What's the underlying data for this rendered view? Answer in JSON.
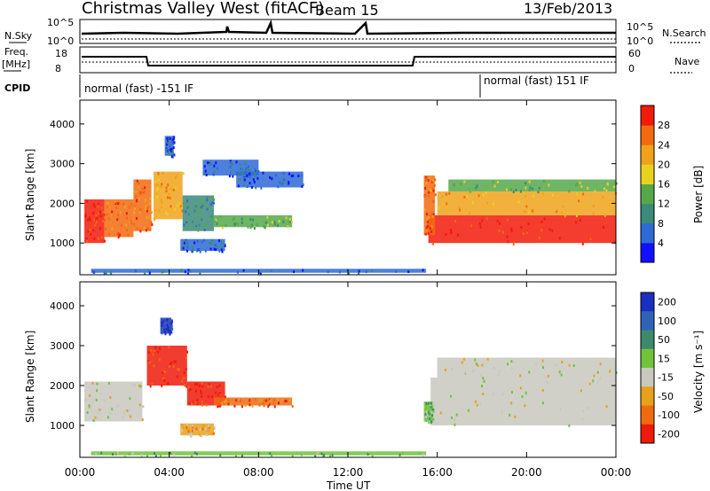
{
  "header": {
    "station": "Christmas Valley West (fitACF)",
    "beam": "Beam 15",
    "date": "13/Feb/2013"
  },
  "status_panel": {
    "nsky_label": "N.Sky",
    "nsky_ticks": [
      "10^5",
      "10^0"
    ],
    "nsearch_ticks": [
      "10^5",
      "10^0"
    ],
    "nsearch_label": "N.Search",
    "freq_label_line1": "Freq.",
    "freq_label_line2": "[MHz]",
    "freq_ticks": [
      "18",
      "8"
    ],
    "nave_ticks": [
      "60",
      "0"
    ],
    "nave_label": "Nave",
    "cpid_label": "CPID",
    "cpid_left": "normal (fast) -151 IF",
    "cpid_right": "normal (fast) 151 IF"
  },
  "chart_data": [
    {
      "type": "heatmap",
      "name": "power",
      "ylabel": "Slant Range [km]",
      "ylim": [
        200,
        4600
      ],
      "yticks": [
        "1000",
        "2000",
        "3000",
        "4000"
      ],
      "xlim_hours": [
        0,
        24
      ],
      "colorbar_label": "Power [dB]",
      "colorbar_ticks": [
        "4",
        "8",
        "12",
        "16",
        "20",
        "24",
        "28"
      ],
      "colorbar_colors": [
        "#1010ff",
        "#2d6ad6",
        "#3c8a7a",
        "#55a84a",
        "#e8d21e",
        "#f0a31a",
        "#f26a10",
        "#f21a0a"
      ],
      "bands": [
        {
          "t0": 0.2,
          "t1": 1.1,
          "r0": 1000,
          "r1": 2100,
          "level": 7
        },
        {
          "t0": 1.1,
          "t1": 2.4,
          "r0": 1150,
          "r1": 2100,
          "level": 6
        },
        {
          "t0": 2.4,
          "t1": 3.2,
          "r0": 1300,
          "r1": 2600,
          "level": 6
        },
        {
          "t0": 3.3,
          "t1": 4.6,
          "r0": 1600,
          "r1": 2800,
          "level": 5
        },
        {
          "t0": 3.8,
          "t1": 4.2,
          "r0": 3200,
          "r1": 3700,
          "level": 1
        },
        {
          "t0": 4.6,
          "t1": 6.0,
          "r0": 1300,
          "r1": 2200,
          "level": 2
        },
        {
          "t0": 6.0,
          "t1": 9.5,
          "r0": 1400,
          "r1": 1700,
          "level": 3
        },
        {
          "t0": 4.5,
          "t1": 6.5,
          "r0": 800,
          "r1": 1100,
          "level": 1
        },
        {
          "t0": 5.5,
          "t1": 8.0,
          "r0": 2700,
          "r1": 3100,
          "level": 1
        },
        {
          "t0": 7.0,
          "t1": 10.0,
          "r0": 2400,
          "r1": 2800,
          "level": 1
        },
        {
          "t0": 15.6,
          "t1": 24.0,
          "r0": 1000,
          "r1": 1700,
          "level": 7
        },
        {
          "t0": 16.0,
          "t1": 24.0,
          "r0": 1700,
          "r1": 2300,
          "level": 5
        },
        {
          "t0": 16.5,
          "t1": 24.0,
          "r0": 2300,
          "r1": 2600,
          "level": 3
        },
        {
          "t0": 15.4,
          "t1": 15.9,
          "r0": 1200,
          "r1": 2700,
          "level": 6
        },
        {
          "t0": 0.5,
          "t1": 15.5,
          "r0": 250,
          "r1": 350,
          "level": 1
        }
      ]
    },
    {
      "type": "heatmap",
      "name": "velocity",
      "ylabel": "Slant Range [km]",
      "ylim": [
        200,
        4600
      ],
      "yticks": [
        "1000",
        "2000",
        "3000",
        "4000"
      ],
      "xlim_hours": [
        0,
        24
      ],
      "colorbar_label": "Velocity [m s⁻¹]",
      "colorbar_ticks": [
        "200",
        "100",
        "50",
        "15",
        "-15",
        "-50",
        "-100",
        "-200"
      ],
      "colorbar_colors": [
        "#1a2ebf",
        "#2f63b8",
        "#3d8a6a",
        "#6fc43a",
        "#c8c8c0",
        "#e8a21a",
        "#f06a10",
        "#ef1a0a"
      ],
      "bands": [
        {
          "t0": 0.2,
          "t1": 2.8,
          "r0": 1100,
          "r1": 2100,
          "level": 4
        },
        {
          "t0": 3.0,
          "t1": 4.8,
          "r0": 2000,
          "r1": 3000,
          "level": 7
        },
        {
          "t0": 4.8,
          "t1": 6.5,
          "r0": 1500,
          "r1": 2100,
          "level": 7
        },
        {
          "t0": 6.0,
          "t1": 9.5,
          "r0": 1500,
          "r1": 1700,
          "level": 6
        },
        {
          "t0": 4.5,
          "t1": 6.0,
          "r0": 750,
          "r1": 1050,
          "level": 5
        },
        {
          "t0": 3.6,
          "t1": 4.1,
          "r0": 3300,
          "r1": 3700,
          "level": 0
        },
        {
          "t0": 15.7,
          "t1": 24.0,
          "r0": 1000,
          "r1": 2200,
          "level": 4
        },
        {
          "t0": 16.0,
          "t1": 24.0,
          "r0": 2200,
          "r1": 2700,
          "level": 4
        },
        {
          "t0": 15.4,
          "t1": 15.8,
          "r0": 1100,
          "r1": 1600,
          "level": 3
        },
        {
          "t0": 0.5,
          "t1": 15.5,
          "r0": 250,
          "r1": 350,
          "level": 3
        }
      ]
    }
  ],
  "xaxis": {
    "label": "Time UT",
    "ticks": [
      "00:00",
      "04:00",
      "08:00",
      "12:00",
      "16:00",
      "20:00",
      "00:00"
    ]
  }
}
